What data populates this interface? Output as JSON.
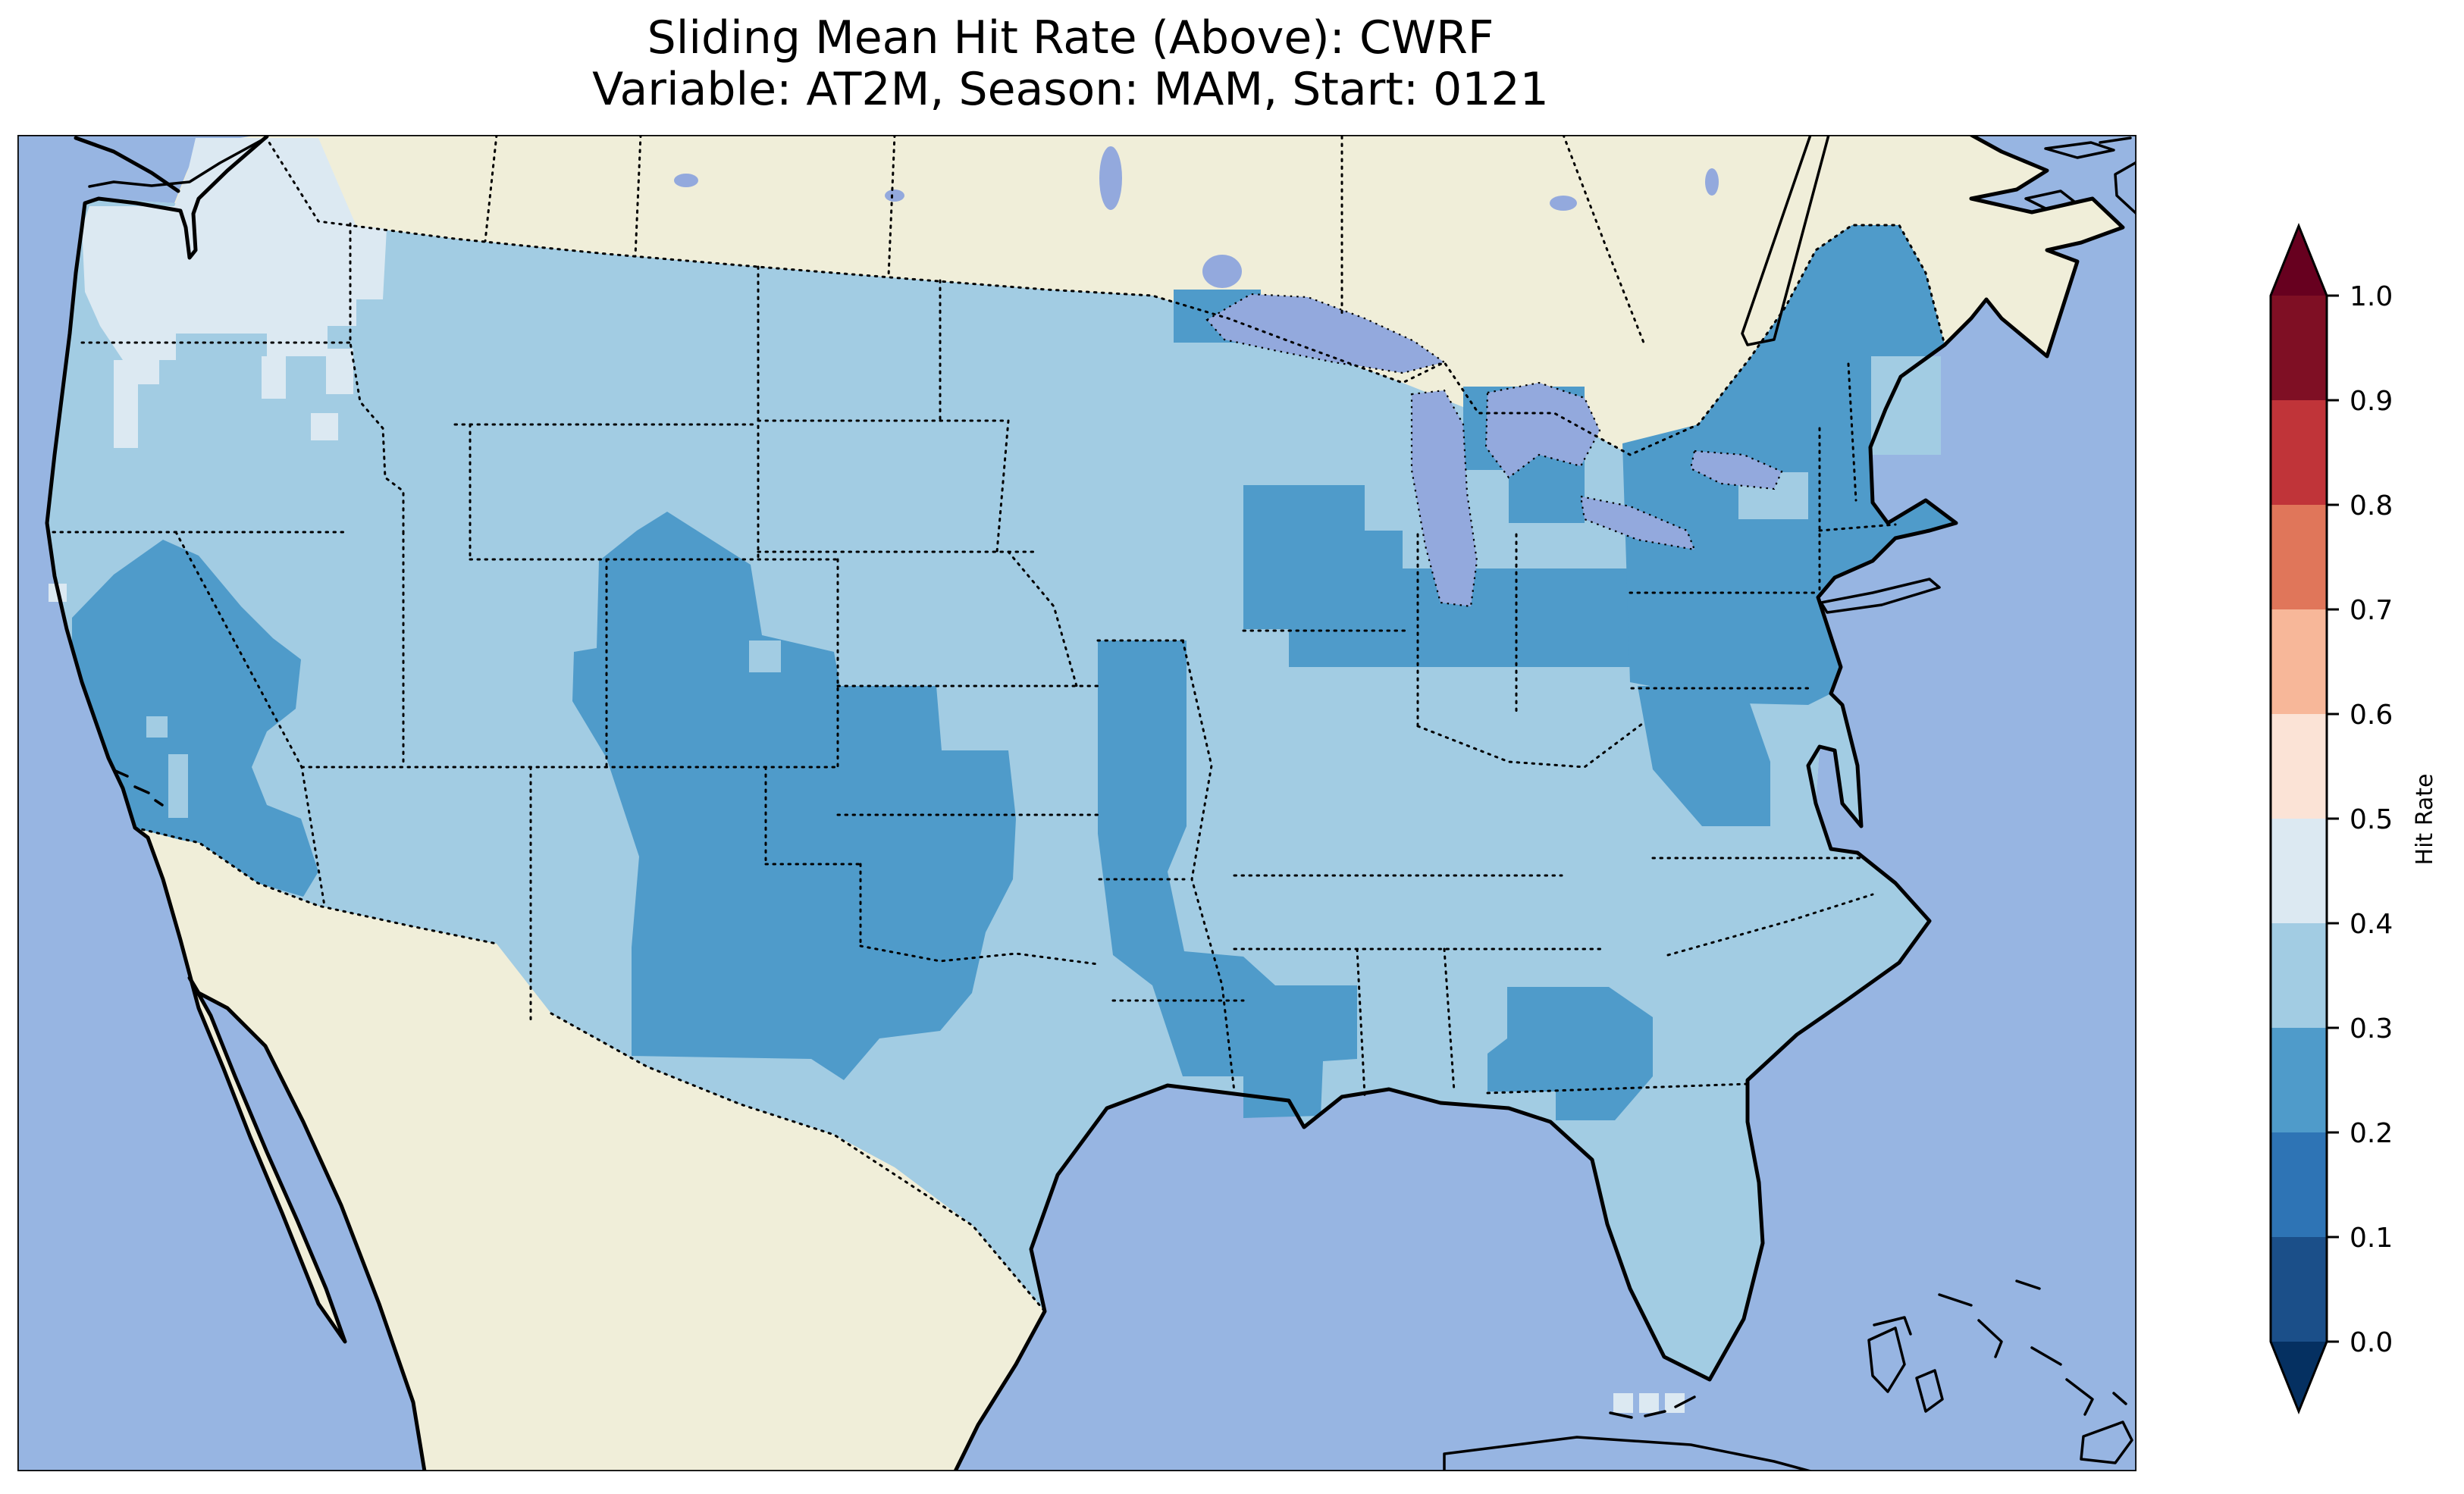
{
  "title": {
    "line1": "Sliding Mean Hit Rate (Above): CWRF",
    "line2": "Variable: AT2M, Season: MAM, Start: 0121"
  },
  "colorbar": {
    "label": "Hit Rate",
    "ticks": [
      "0.0",
      "0.1",
      "0.2",
      "0.3",
      "0.4",
      "0.5",
      "0.6",
      "0.7",
      "0.8",
      "0.9",
      "1.0"
    ],
    "levels": [
      {
        "from": 0.0,
        "to": 0.1,
        "color": "#1b4f89"
      },
      {
        "from": 0.1,
        "to": 0.2,
        "color": "#2e74b5"
      },
      {
        "from": 0.2,
        "to": 0.3,
        "color": "#4f9bca"
      },
      {
        "from": 0.3,
        "to": 0.4,
        "color": "#a2cce3"
      },
      {
        "from": 0.4,
        "to": 0.5,
        "color": "#dce9f2"
      },
      {
        "from": 0.5,
        "to": 0.6,
        "color": "#fbe3d6"
      },
      {
        "from": 0.6,
        "to": 0.7,
        "color": "#f7b799"
      },
      {
        "from": 0.7,
        "to": 0.8,
        "color": "#e0765a"
      },
      {
        "from": 0.8,
        "to": 0.9,
        "color": "#c03439"
      },
      {
        "from": 0.9,
        "to": 1.0,
        "color": "#7f0f24"
      }
    ],
    "under_color": "#053061",
    "over_color": "#67001f",
    "extend": "both",
    "orientation": "vertical-right"
  },
  "map": {
    "ocean_color": "#97b5e2",
    "land_color": "#f0eed9",
    "lake_color": "#93a9dd",
    "border_style": "dotted black state and national borders",
    "projection_hint": "Lambert conformal over CONUS"
  },
  "chart_data": {
    "type": "heatmap",
    "title": "Sliding Mean Hit Rate (Above): CWRF",
    "subtitle": "Variable: AT2M, Season: MAM, Start: 0121",
    "model": "CWRF",
    "metric": "Sliding Mean Hit Rate (Above)",
    "variable": "AT2M",
    "season": "MAM",
    "start": "0121",
    "colorbar_label": "Hit Rate",
    "colorbar_ticks": [
      0.0,
      0.1,
      0.2,
      0.3,
      0.4,
      0.5,
      0.6,
      0.7,
      0.8,
      0.9,
      1.0
    ],
    "value_range_shown": [
      0.2,
      0.5
    ],
    "legend_position": "right",
    "grid": "off",
    "regions": [
      {
        "area": "Most of CONUS (background field)",
        "hit_rate": "0.3–0.4"
      },
      {
        "area": "Washington, northern Idaho, NW Montana",
        "hit_rate": "0.4–0.5"
      },
      {
        "area": "Scattered cells Oregon coast and south of Florida",
        "hit_rate": "0.4–0.5"
      },
      {
        "area": "Central/southern California, Nevada, western Arizona, SW Utah",
        "hit_rate": "0.2–0.3"
      },
      {
        "area": "High Plains: W Nebraska, E Colorado, Kansas, Oklahoma, W Texas, E New Mexico",
        "hit_rate": "0.2–0.3"
      },
      {
        "area": "Missouri–Arkansas–Louisiana–Mississippi corridor",
        "hit_rate": "0.2–0.3"
      },
      {
        "area": "Southern Wisconsin, N Illinois, Michigan, Indiana, NW Ohio",
        "hit_rate": "0.2–0.3"
      },
      {
        "area": "Northeast: New York, Pennsylvania, New England, Maine",
        "hit_rate": "0.2–0.3"
      },
      {
        "area": "Virginia / Chesapeake region",
        "hit_rate": "0.2–0.3"
      },
      {
        "area": "Southern Georgia – northern Florida",
        "hit_rate": "0.2–0.3"
      },
      {
        "area": "SE coastal Maine, Connecticut–Rhode Island patch",
        "hit_rate": "0.3–0.4"
      },
      {
        "area": "Canada, Mexico, oceans",
        "hit_rate": "no data"
      }
    ]
  }
}
